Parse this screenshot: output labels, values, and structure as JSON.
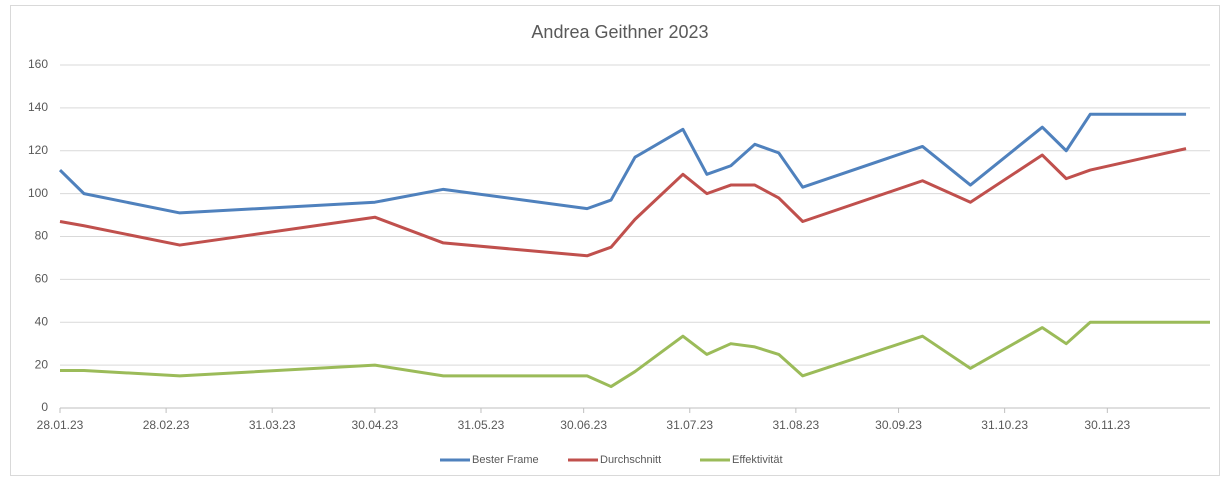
{
  "chart_data": {
    "type": "line",
    "title": "Andrea Geithner 2023",
    "x": [
      28,
      35,
      63,
      120,
      140,
      182,
      189,
      196,
      210,
      217,
      224,
      231,
      238,
      245,
      280,
      294,
      315,
      322,
      329,
      357,
      364
    ],
    "series": [
      {
        "name": "Bester Frame",
        "color": "#4f81bd",
        "values": [
          111,
          100,
          91,
          96,
          102,
          93,
          97,
          117,
          130,
          109,
          113,
          123,
          119,
          103,
          122,
          104,
          131,
          120,
          137,
          137,
          null
        ]
      },
      {
        "name": "Durchschnitt",
        "color": "#c0504d",
        "values": [
          87,
          85,
          76,
          89,
          77,
          71,
          75,
          88,
          109,
          100,
          104,
          104,
          98,
          87,
          106,
          96,
          118,
          107,
          111,
          121,
          null
        ]
      },
      {
        "name": "Effektivität",
        "color": "#9bbb59",
        "values": [
          17.5,
          17.5,
          15,
          20,
          15,
          15,
          10,
          17,
          33.5,
          25,
          30,
          28.5,
          25,
          15,
          33.5,
          18.5,
          37.5,
          30,
          40,
          40,
          40
        ]
      }
    ],
    "xlim": [
      28,
      364
    ],
    "xticks": [
      {
        "value": 28,
        "label": "28.01.23"
      },
      {
        "value": 59,
        "label": "28.02.23"
      },
      {
        "value": 90,
        "label": "31.03.23"
      },
      {
        "value": 120,
        "label": "30.04.23"
      },
      {
        "value": 151,
        "label": "31.05.23"
      },
      {
        "value": 181,
        "label": "30.06.23"
      },
      {
        "value": 212,
        "label": "31.07.23"
      },
      {
        "value": 243,
        "label": "31.08.23"
      },
      {
        "value": 273,
        "label": "30.09.23"
      },
      {
        "value": 304,
        "label": "31.10.23"
      },
      {
        "value": 334,
        "label": "30.11.23"
      }
    ],
    "ylim": [
      0,
      160
    ],
    "yticks": [
      0,
      20,
      40,
      60,
      80,
      100,
      120,
      140,
      160
    ],
    "grid": true,
    "legend": "bottom"
  }
}
